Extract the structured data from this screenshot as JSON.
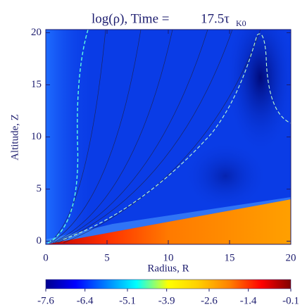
{
  "chart_data": {
    "type": "heatmap",
    "title": "log(ρ), Time =",
    "time_label": "17.5τ",
    "time_subscript": "K0",
    "x_label": "Radius, R",
    "y_label": "Altitude, Z",
    "xlim": [
      0,
      20
    ],
    "xticks": [
      0,
      5,
      10,
      15,
      20
    ],
    "ylim": [
      -0.3,
      20.3
    ],
    "yticks": [
      0,
      5,
      10,
      15,
      20
    ],
    "colormap": "jet",
    "clim": [
      -7.6,
      -0.1
    ],
    "cticks": [
      -7.6,
      -6.4,
      -5.1,
      -3.9,
      -2.6,
      -1.4,
      -0.1
    ]
  }
}
